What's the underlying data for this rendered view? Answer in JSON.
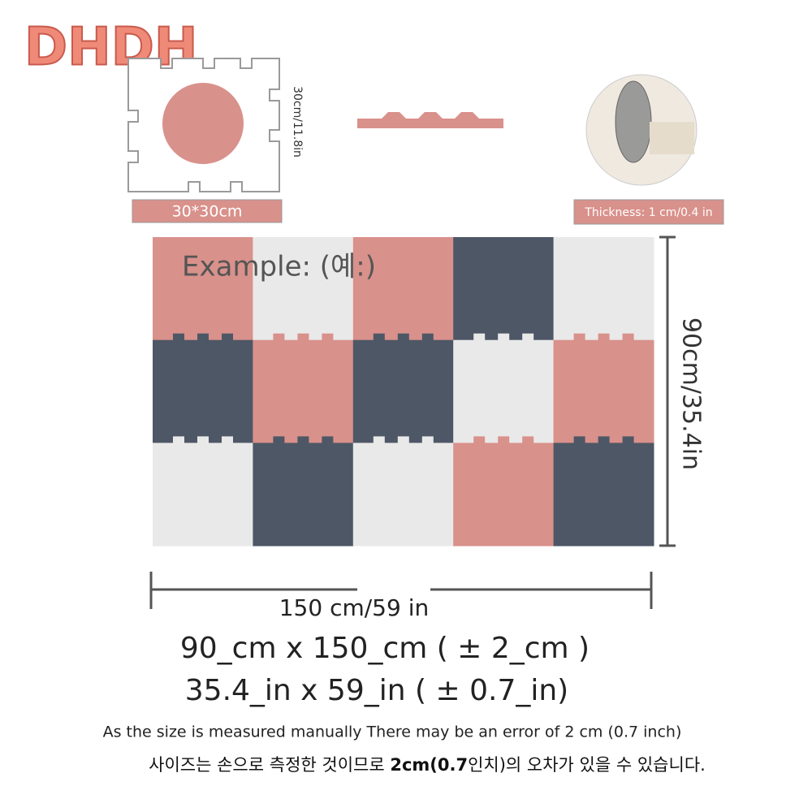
{
  "logo": "DHDH",
  "tile": {
    "side_label": "30cm/11.8in",
    "size_label": "30*30cm"
  },
  "thickness_label": "Thickness: 1 cm/0.4 in",
  "example_label": "Example: (예:)",
  "height_label": "90cm/35.4in",
  "width_label": "150 cm/59 in",
  "size_cm": "90_cm x 150_cm ( ± 2_cm )",
  "size_in": "35.4_in x 59_in ( ± 0.7_in)",
  "note_en": "As the size is measured manually There may be an error of 2 cm (0.7 inch)",
  "note_ko": {
    "before": "사이즈는 손으로 측정한 것이므로 ",
    "bold": "2cm(0.7",
    "after": "인치)의 오차가 있을 수 있습니다."
  }
}
